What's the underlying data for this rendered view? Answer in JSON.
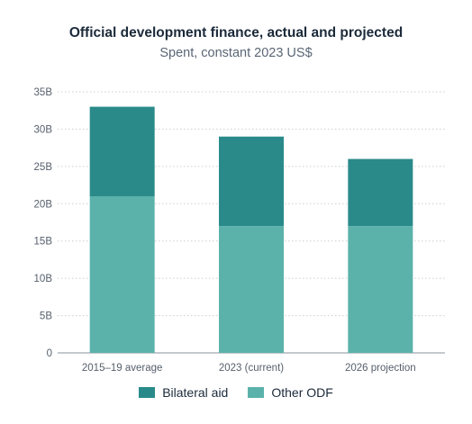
{
  "chart_data": {
    "type": "bar",
    "stacked": true,
    "title": "Official development finance, actual and projected",
    "subtitle": "Spent, constant 2023 US$",
    "categories": [
      "2015–19 average",
      "2023 (current)",
      "2026 projection"
    ],
    "series": [
      {
        "name": "Other ODF",
        "values": [
          21,
          17,
          17
        ],
        "color": "#5bb2aa"
      },
      {
        "name": "Bilateral aid",
        "values": [
          12,
          12,
          9
        ],
        "color": "#2a8a8a"
      }
    ],
    "ylim": [
      0,
      35
    ],
    "yticks": [
      {
        "value": 0,
        "label": "0"
      },
      {
        "value": 5,
        "label": "5B"
      },
      {
        "value": 10,
        "label": "10B"
      },
      {
        "value": 15,
        "label": "15B"
      },
      {
        "value": 20,
        "label": "20B"
      },
      {
        "value": 25,
        "label": "25B"
      },
      {
        "value": 30,
        "label": "30B"
      },
      {
        "value": 35,
        "label": "35B"
      }
    ],
    "grid": true,
    "legend_position": "bottom",
    "legend": [
      {
        "name": "Bilateral aid",
        "color": "#2a8a8a"
      },
      {
        "name": "Other ODF",
        "color": "#5bb2aa"
      }
    ]
  }
}
